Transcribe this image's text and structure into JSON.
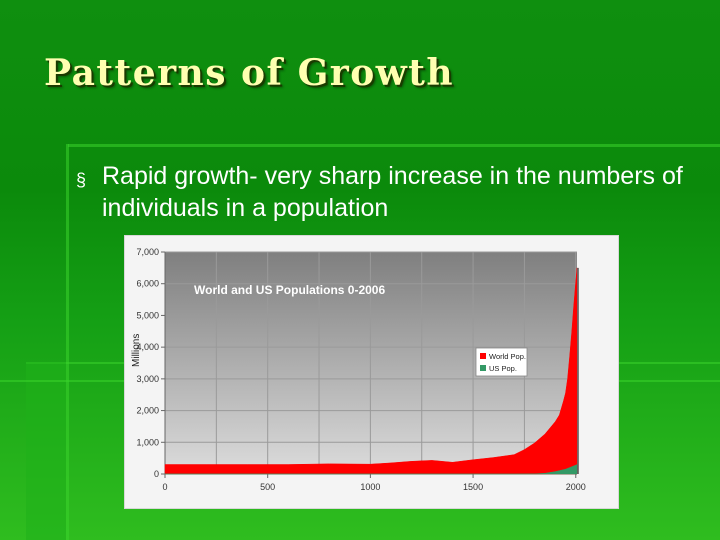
{
  "slide": {
    "title": "Patterns of Growth",
    "bullet_marker": "§",
    "bullet": "Rapid growth- very sharp increase in the numbers of individuals in a population"
  },
  "chart_data": {
    "type": "area",
    "title": "World and US Populations 0-2006",
    "ylabel": "Millions",
    "xlabel": "",
    "xlim": [
      0,
      2006
    ],
    "ylim": [
      0,
      7000
    ],
    "x_ticks": [
      "0",
      "500",
      "1000",
      "1500",
      "2000"
    ],
    "y_ticks": [
      "0",
      "1,000",
      "2,000",
      "3,000",
      "4,000",
      "5,000",
      "6,000",
      "7,000"
    ],
    "grid": true,
    "legend_position": "right",
    "series": [
      {
        "name": "World Pop.",
        "color": "#ff0000",
        "x": [
          0,
          200,
          400,
          600,
          800,
          1000,
          1100,
          1200,
          1300,
          1400,
          1500,
          1600,
          1700,
          1750,
          1800,
          1850,
          1900,
          1920,
          1940,
          1950,
          1960,
          1970,
          1980,
          1990,
          2000,
          2006
        ],
        "y": [
          300,
          300,
          300,
          300,
          320,
          310,
          350,
          400,
          430,
          370,
          450,
          520,
          610,
          770,
          980,
          1260,
          1650,
          1860,
          2300,
          2550,
          3000,
          3700,
          4450,
          5300,
          6080,
          6500
        ]
      },
      {
        "name": "US Pop.",
        "color": "#339966",
        "x": [
          0,
          1700,
          1800,
          1850,
          1900,
          1950,
          2000,
          2006
        ],
        "y": [
          0,
          0,
          5,
          23,
          76,
          151,
          281,
          299
        ]
      }
    ]
  }
}
